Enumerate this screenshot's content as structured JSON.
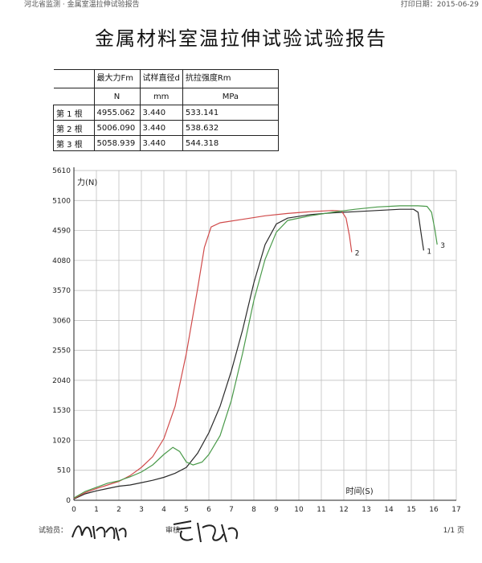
{
  "header": {
    "left_text": "河北省监测 · 金属室温拉伸试验报告",
    "right_text": "打印日期：2015-06-29"
  },
  "title": "金属材料室温拉伸试验试验报告",
  "table": {
    "headers": [
      "",
      "最大力Fm",
      "试样直径d",
      "抗拉强度Rm"
    ],
    "units": [
      "",
      "N",
      "mm",
      "MPa"
    ],
    "rows": [
      {
        "label": "第 1 根",
        "fm": "4955.062",
        "d": "3.440",
        "rm": "533.141"
      },
      {
        "label": "第 2 根",
        "fm": "5006.090",
        "d": "3.440",
        "rm": "538.632"
      },
      {
        "label": "第 3 根",
        "fm": "5058.939",
        "d": "3.440",
        "rm": "544.318"
      }
    ]
  },
  "chart_data": {
    "type": "line",
    "ylabel": "力(N)",
    "xlabel": "时间(S)",
    "xlim": [
      0,
      17
    ],
    "ylim": [
      0,
      5610
    ],
    "x_ticks": [
      0,
      1,
      2,
      3,
      4,
      5,
      6,
      7,
      8,
      9,
      10,
      11,
      12,
      13,
      14,
      15,
      16,
      17
    ],
    "y_ticks": [
      0,
      510,
      1020,
      1530,
      2040,
      2550,
      3060,
      3570,
      4080,
      4590,
      5100,
      5610
    ],
    "grid": true,
    "series": [
      {
        "name": "1",
        "color": "#2a2a2a",
        "points": [
          [
            0,
            20
          ],
          [
            0.5,
            110
          ],
          [
            1,
            160
          ],
          [
            1.5,
            200
          ],
          [
            2,
            240
          ],
          [
            2.5,
            260
          ],
          [
            3,
            300
          ],
          [
            3.5,
            340
          ],
          [
            4,
            390
          ],
          [
            4.5,
            460
          ],
          [
            5,
            560
          ],
          [
            5.5,
            800
          ],
          [
            6,
            1150
          ],
          [
            6.5,
            1600
          ],
          [
            7,
            2200
          ],
          [
            7.5,
            2900
          ],
          [
            8,
            3700
          ],
          [
            8.5,
            4350
          ],
          [
            9,
            4700
          ],
          [
            9.5,
            4800
          ],
          [
            10.5,
            4860
          ],
          [
            11.5,
            4890
          ],
          [
            12.5,
            4910
          ],
          [
            13.5,
            4930
          ],
          [
            14.5,
            4950
          ],
          [
            15.1,
            4950
          ],
          [
            15.3,
            4900
          ],
          [
            15.45,
            4500
          ],
          [
            15.55,
            4250
          ]
        ]
      },
      {
        "name": "2",
        "color": "#d04a4a",
        "points": [
          [
            0,
            30
          ],
          [
            0.5,
            130
          ],
          [
            1,
            200
          ],
          [
            1.5,
            260
          ],
          [
            2,
            320
          ],
          [
            2.5,
            420
          ],
          [
            3,
            560
          ],
          [
            3.5,
            740
          ],
          [
            4,
            1050
          ],
          [
            4.5,
            1600
          ],
          [
            5,
            2500
          ],
          [
            5.5,
            3600
          ],
          [
            5.8,
            4300
          ],
          [
            6.1,
            4650
          ],
          [
            6.5,
            4720
          ],
          [
            7.5,
            4780
          ],
          [
            8.5,
            4840
          ],
          [
            9.5,
            4880
          ],
          [
            10.5,
            4910
          ],
          [
            11.5,
            4930
          ],
          [
            11.9,
            4920
          ],
          [
            12.1,
            4800
          ],
          [
            12.25,
            4500
          ],
          [
            12.35,
            4220
          ]
        ]
      },
      {
        "name": "3",
        "color": "#4a9a4a",
        "points": [
          [
            0,
            40
          ],
          [
            0.5,
            150
          ],
          [
            1,
            220
          ],
          [
            1.5,
            290
          ],
          [
            2,
            330
          ],
          [
            2.2,
            360
          ],
          [
            2.5,
            400
          ],
          [
            3,
            480
          ],
          [
            3.5,
            600
          ],
          [
            4,
            780
          ],
          [
            4.4,
            900
          ],
          [
            4.7,
            830
          ],
          [
            5,
            650
          ],
          [
            5.3,
            600
          ],
          [
            5.7,
            650
          ],
          [
            6,
            780
          ],
          [
            6.5,
            1100
          ],
          [
            7,
            1700
          ],
          [
            7.5,
            2500
          ],
          [
            8,
            3400
          ],
          [
            8.5,
            4100
          ],
          [
            9,
            4560
          ],
          [
            9.5,
            4760
          ],
          [
            10.5,
            4840
          ],
          [
            11.5,
            4900
          ],
          [
            12.5,
            4950
          ],
          [
            13.5,
            4990
          ],
          [
            14.5,
            5010
          ],
          [
            15.3,
            5010
          ],
          [
            15.7,
            5000
          ],
          [
            15.9,
            4900
          ],
          [
            16.05,
            4600
          ],
          [
            16.15,
            4350
          ]
        ]
      }
    ]
  },
  "footer": {
    "tester_label": "试验员：",
    "reviewer_label": "审核：",
    "page_text": "1/1 页"
  }
}
